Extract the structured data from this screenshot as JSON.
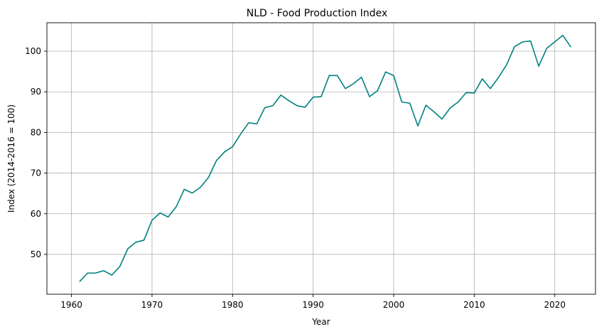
{
  "chart_data": {
    "type": "line",
    "title": "NLD - Food Production Index",
    "xlabel": "Year",
    "ylabel": "Index (2014-2016 = 100)",
    "xlim": [
      1956.95,
      2025.05
    ],
    "ylim": [
      40.2,
      107.0
    ],
    "xticks": [
      1960,
      1970,
      1980,
      1990,
      2000,
      2010,
      2020
    ],
    "yticks": [
      50,
      60,
      70,
      80,
      90,
      100
    ],
    "grid": true,
    "line_color": "#008080",
    "series": [
      {
        "x": [
          1961,
          1962,
          1963,
          1964,
          1965,
          1966,
          1967,
          1968,
          1969,
          1970,
          1971,
          1972,
          1973,
          1974,
          1975,
          1976,
          1977,
          1978,
          1979,
          1980,
          1981,
          1982,
          1983,
          1984,
          1985,
          1986,
          1987,
          1988,
          1989,
          1990,
          1991,
          1992,
          1993,
          1994,
          1995,
          1996,
          1997,
          1998,
          1999,
          2000,
          2001,
          2002,
          2003,
          2004,
          2005,
          2006,
          2007,
          2008,
          2009,
          2010,
          2011,
          2012,
          2013,
          2014,
          2015,
          2016,
          2017,
          2018,
          2019,
          2020,
          2021,
          2022
        ],
        "values": [
          43.3,
          45.4,
          45.4,
          46.0,
          44.9,
          47.0,
          51.4,
          53.0,
          53.5,
          58.4,
          60.2,
          59.2,
          61.7,
          66.0,
          65.1,
          66.5,
          68.9,
          73.1,
          75.2,
          76.5,
          79.6,
          82.4,
          82.1,
          86.1,
          86.6,
          89.2,
          87.8,
          86.6,
          86.2,
          88.7,
          88.8,
          94.0,
          94.0,
          90.8,
          92.0,
          93.6,
          88.8,
          90.3,
          94.9,
          94.0,
          87.5,
          87.2,
          81.6,
          86.7,
          85.1,
          83.3,
          86.0,
          87.5,
          89.8,
          89.7,
          93.2,
          90.8,
          93.5,
          96.6,
          101.1,
          102.3,
          102.5,
          96.3,
          100.7,
          102.3,
          103.9,
          101.0
        ]
      }
    ]
  }
}
